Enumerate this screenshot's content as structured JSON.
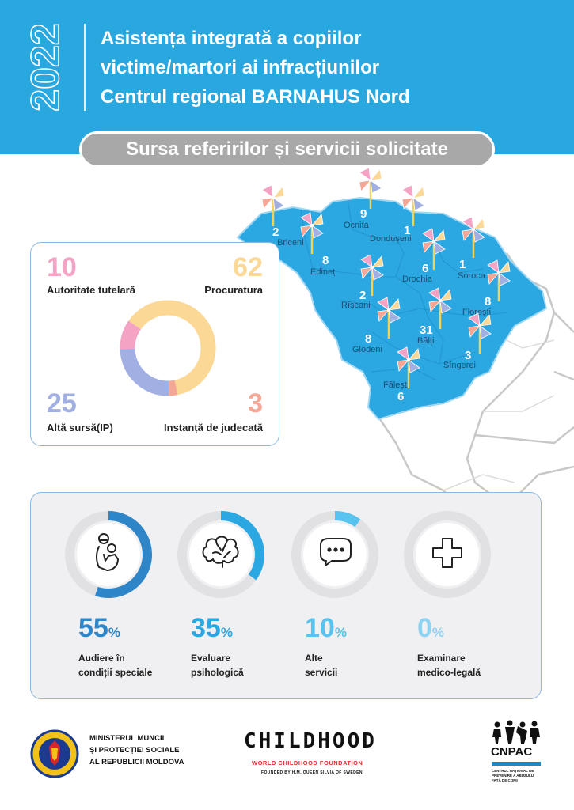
{
  "header": {
    "year": "2022",
    "title_lines": [
      "Asistența integrată a copiilor",
      "victime/martori ai infracțiunilor",
      "Centrul regional BARNAHUS Nord"
    ]
  },
  "subtitle": "Sursa referirilor și servicii solicitate",
  "map": {
    "districts": [
      {
        "name": "Briceni",
        "count": "2"
      },
      {
        "name": "Ocnița",
        "count": "9"
      },
      {
        "name": "Dondușeni",
        "count": "1"
      },
      {
        "name": "Edineț",
        "count": "8"
      },
      {
        "name": "Drochia",
        "count": "6"
      },
      {
        "name": "Soroca",
        "count": "1"
      },
      {
        "name": "Rîșcani",
        "count": "2"
      },
      {
        "name": "Florești",
        "count": "8"
      },
      {
        "name": "Glodeni",
        "count": "8"
      },
      {
        "name": "Bălți",
        "count": "31"
      },
      {
        "name": "Sîngerei",
        "count": "3"
      },
      {
        "name": "Fălești",
        "count": "6"
      }
    ],
    "colors": {
      "region": "#2ba7e1",
      "border": "#bdbdbd"
    }
  },
  "referrals": {
    "items": [
      {
        "value": "10",
        "label": "Autoritate tutelară",
        "color": "#f4a3c5"
      },
      {
        "value": "62",
        "label": "Procuratura",
        "color": "#fbd896"
      },
      {
        "value": "25",
        "label": "Altă sursă(IP)",
        "color": "#a1afe2"
      },
      {
        "value": "3",
        "label": "Instanță de judecată",
        "color": "#f5a796"
      }
    ]
  },
  "services": {
    "items": [
      {
        "percent": "55",
        "sign": "%",
        "label_lines": [
          "Audiere în",
          "condiții speciale"
        ],
        "color": "#2e86c8",
        "icon": "child-hug-icon"
      },
      {
        "percent": "35",
        "sign": "%",
        "label_lines": [
          "Evaluare",
          "psihologică"
        ],
        "color": "#2ba7e1",
        "icon": "brain-icon"
      },
      {
        "percent": "10",
        "sign": "%",
        "label_lines": [
          "Alte",
          "servicii"
        ],
        "color": "#58c3ee",
        "icon": "speech-bubble-icon"
      },
      {
        "percent": "0",
        "sign": "%",
        "label_lines": [
          "Examinare",
          "medico-legală"
        ],
        "color": "#8fd3f2",
        "icon": "medical-cross-icon"
      }
    ]
  },
  "footer": {
    "ministry_lines": [
      "MINISTERUL MUNCII",
      "ȘI PROTECȚIEI SOCIALE",
      "AL REPUBLICII MOLDOVA"
    ],
    "childhood_logo": "CHILDHOOD",
    "childhood_sub": "WORLD CHILDHOOD FOUNDATION",
    "childhood_sub2": "FOUNDED BY H.M. QUEEN SILVIA OF SWEDEN",
    "cnpac_name": "CNPAC",
    "cnpac_sub": "CENTRUL NAȚIONAL DE PREVENIRE A ABUZULUI FAȚĂ DE COPII"
  }
}
